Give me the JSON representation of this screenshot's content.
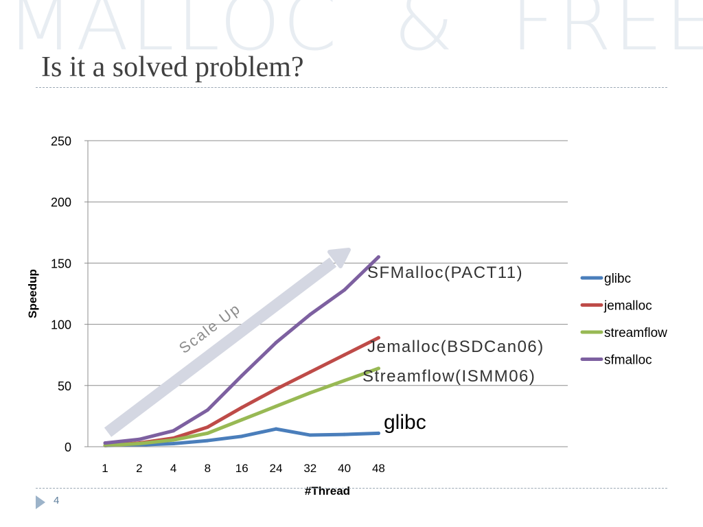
{
  "slide": {
    "watermark": "MALLOC  &  FREE",
    "title": "Is it a solved problem?",
    "page_number": "4"
  },
  "chart_data": {
    "type": "line",
    "xlabel": "#Thread",
    "ylabel": "Speedup",
    "categories": [
      "1",
      "2",
      "4",
      "8",
      "16",
      "24",
      "32",
      "40",
      "48"
    ],
    "ylim": [
      0,
      250
    ],
    "yticks": [
      0,
      50,
      100,
      150,
      200,
      250
    ],
    "grid": true,
    "legend_position": "right",
    "series": [
      {
        "name": "glibc",
        "color": "#4a7ebb",
        "values": [
          1,
          1.5,
          2.5,
          5,
          8.5,
          14.5,
          9.5,
          10,
          11
        ]
      },
      {
        "name": "jemalloc",
        "color": "#be4b48",
        "values": [
          1,
          3,
          7,
          16,
          32,
          47,
          61,
          75,
          89
        ]
      },
      {
        "name": "streamflow",
        "color": "#98b954",
        "values": [
          1,
          2.5,
          5.5,
          11,
          22,
          33,
          44,
          54,
          64
        ]
      },
      {
        "name": "sfmalloc",
        "color": "#7d60a0",
        "values": [
          3,
          6,
          13,
          30,
          58,
          85,
          108,
          128,
          155
        ]
      }
    ],
    "annotations": [
      {
        "text": "SFMalloc(PACT11)",
        "series": "sfmalloc"
      },
      {
        "text": "Jemalloc(BSDCan06)",
        "series": "jemalloc"
      },
      {
        "text": "Streamflow(ISMM06)",
        "series": "streamflow"
      },
      {
        "text": "glibc",
        "series": "glibc"
      },
      {
        "text": "Scale Up"
      }
    ]
  }
}
